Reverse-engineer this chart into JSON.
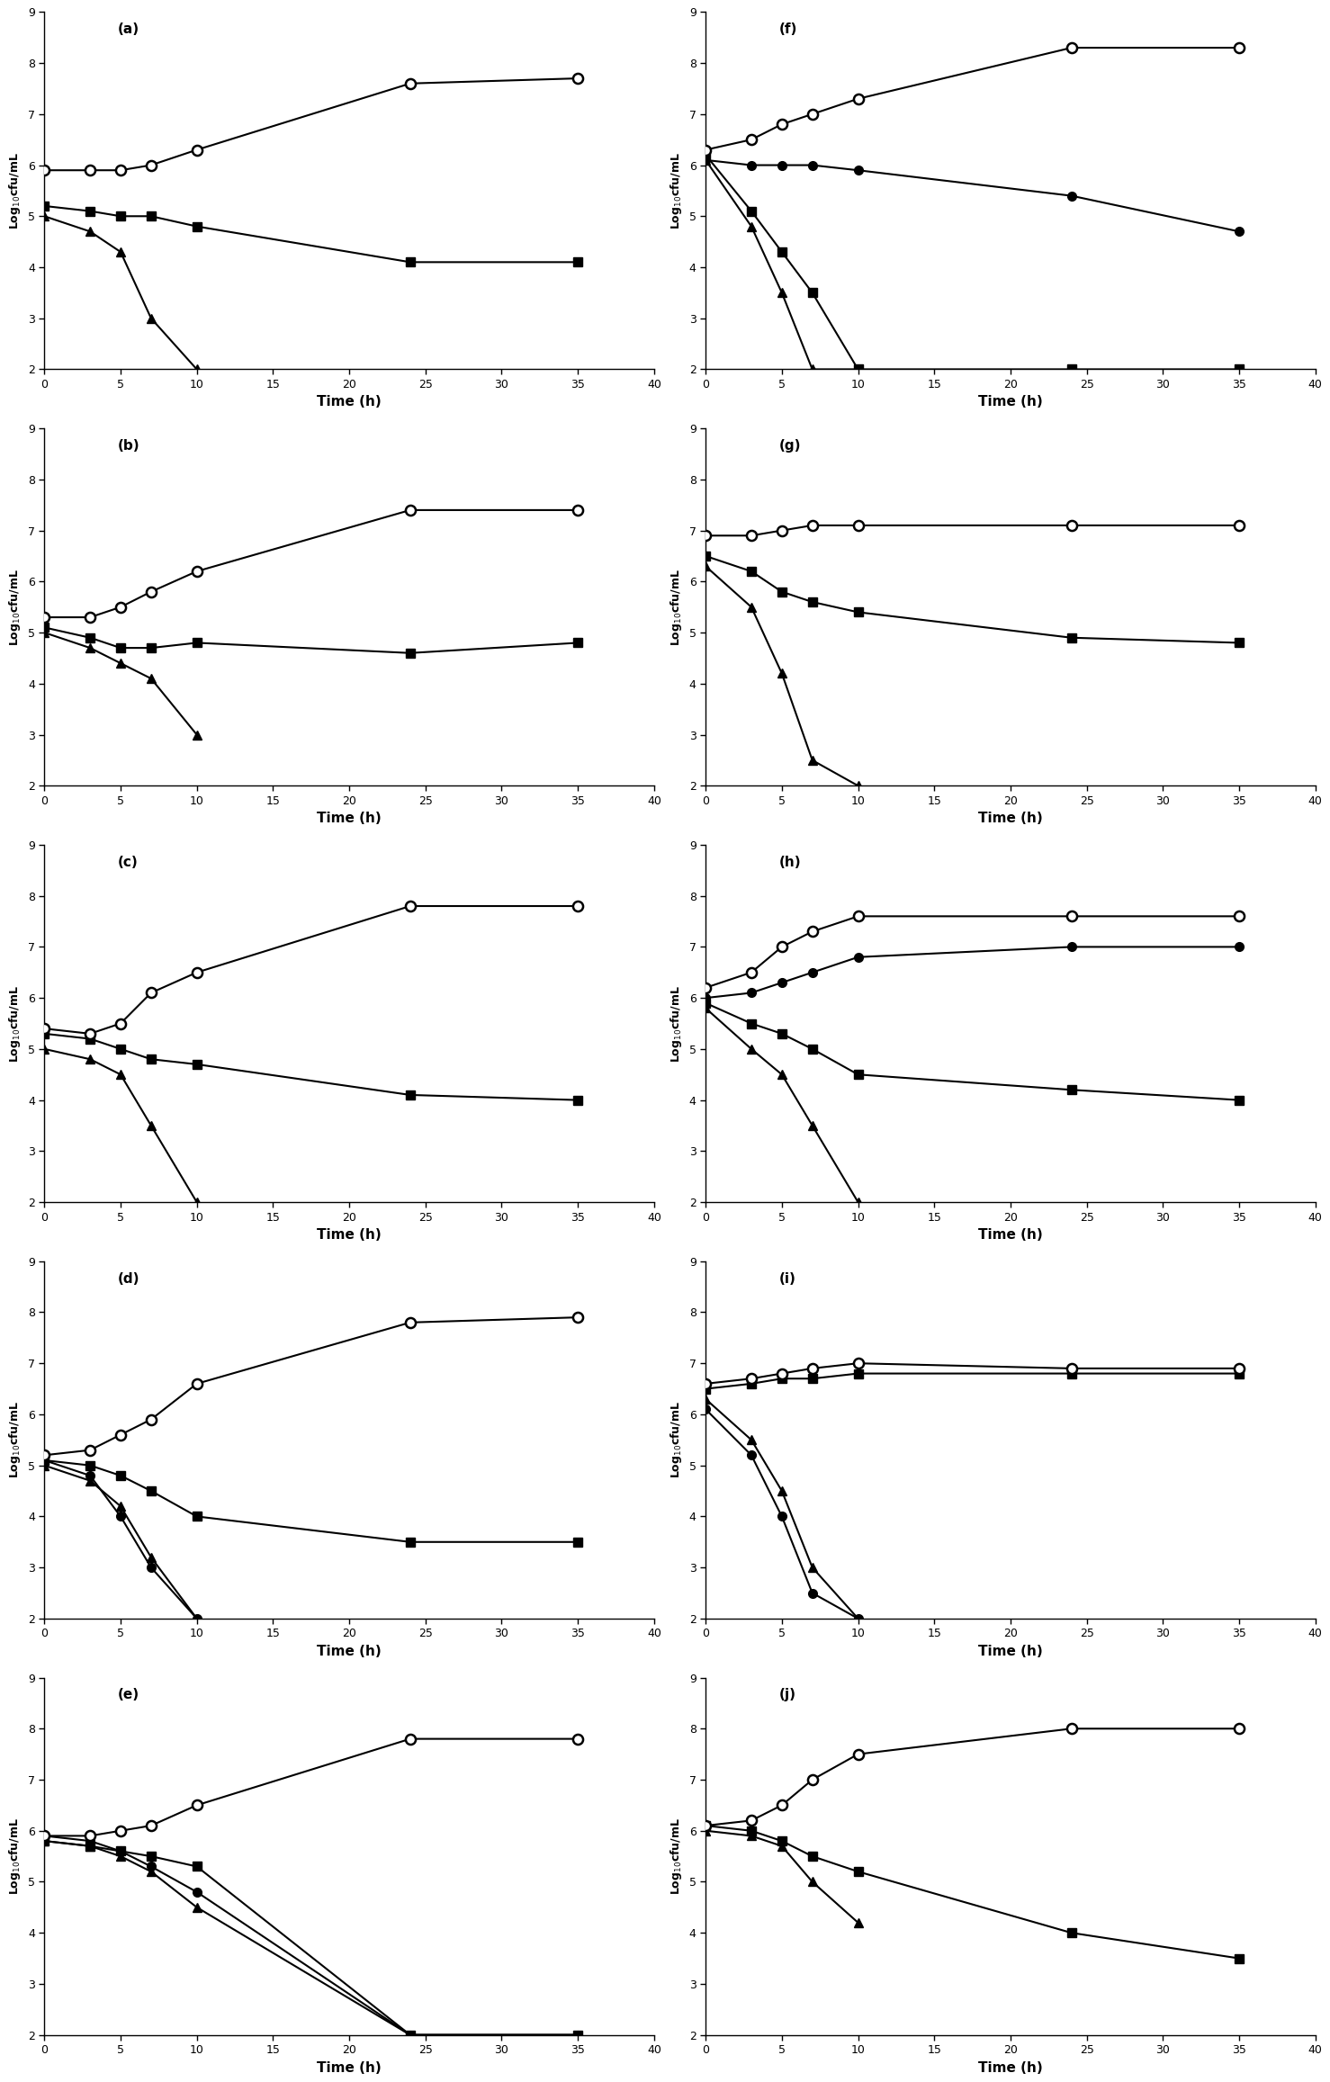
{
  "subplots": {
    "a": {
      "label": "(a)",
      "open_circle": {
        "x": [
          0,
          3,
          5,
          7,
          10,
          24,
          35
        ],
        "y": [
          5.9,
          5.9,
          5.9,
          6.0,
          6.3,
          7.6,
          7.7
        ]
      },
      "filled_square": {
        "x": [
          0,
          3,
          5,
          7,
          10,
          24,
          35
        ],
        "y": [
          5.2,
          5.1,
          5.0,
          5.0,
          4.8,
          4.1,
          4.1
        ]
      },
      "filled_triangle": {
        "x": [
          0,
          3,
          5,
          7,
          10
        ],
        "y": [
          5.0,
          4.7,
          4.3,
          3.0,
          2.0
        ]
      },
      "has_filled_circle": false
    },
    "b": {
      "label": "(b)",
      "open_circle": {
        "x": [
          0,
          3,
          5,
          7,
          10,
          24,
          35
        ],
        "y": [
          5.3,
          5.3,
          5.5,
          5.8,
          6.2,
          7.4,
          7.4
        ]
      },
      "filled_square": {
        "x": [
          0,
          3,
          5,
          7,
          10,
          24,
          35
        ],
        "y": [
          5.1,
          4.9,
          4.7,
          4.7,
          4.8,
          4.6,
          4.8
        ]
      },
      "filled_triangle": {
        "x": [
          0,
          3,
          5,
          7,
          10
        ],
        "y": [
          5.0,
          4.7,
          4.4,
          4.1,
          3.0
        ]
      },
      "has_filled_circle": false
    },
    "c": {
      "label": "(c)",
      "open_circle": {
        "x": [
          0,
          3,
          5,
          7,
          10,
          24,
          35
        ],
        "y": [
          5.4,
          5.3,
          5.5,
          6.1,
          6.5,
          7.8,
          7.8
        ]
      },
      "filled_square": {
        "x": [
          0,
          3,
          5,
          7,
          10,
          24,
          35
        ],
        "y": [
          5.3,
          5.2,
          5.0,
          4.8,
          4.7,
          4.1,
          4.0
        ]
      },
      "filled_triangle": {
        "x": [
          0,
          3,
          5,
          7,
          10
        ],
        "y": [
          5.0,
          4.8,
          4.5,
          3.5,
          2.0
        ]
      },
      "has_filled_circle": false
    },
    "d": {
      "label": "(d)",
      "open_circle": {
        "x": [
          0,
          3,
          5,
          7,
          10,
          24,
          35
        ],
        "y": [
          5.2,
          5.3,
          5.6,
          5.9,
          6.6,
          7.8,
          7.9
        ]
      },
      "filled_square": {
        "x": [
          0,
          3,
          5,
          7,
          10,
          24,
          35
        ],
        "y": [
          5.1,
          5.0,
          4.8,
          4.5,
          4.0,
          3.5,
          3.5
        ]
      },
      "filled_triangle": {
        "x": [
          0,
          3,
          5,
          7,
          10
        ],
        "y": [
          5.0,
          4.7,
          4.2,
          3.2,
          2.0
        ]
      },
      "filled_circle": {
        "x": [
          0,
          3,
          5,
          7,
          10
        ],
        "y": [
          5.1,
          4.8,
          4.0,
          3.0,
          2.0
        ]
      },
      "has_filled_circle": true
    },
    "e": {
      "label": "(e)",
      "open_circle": {
        "x": [
          0,
          3,
          5,
          7,
          10,
          24,
          35
        ],
        "y": [
          5.9,
          5.9,
          6.0,
          6.1,
          6.5,
          7.8,
          7.8
        ]
      },
      "filled_square": {
        "x": [
          0,
          3,
          5,
          7,
          10,
          24,
          35
        ],
        "y": [
          5.8,
          5.7,
          5.6,
          5.5,
          5.3,
          2.0,
          2.0
        ]
      },
      "filled_triangle": {
        "x": [
          0,
          3,
          5,
          7,
          10,
          24,
          35
        ],
        "y": [
          5.8,
          5.7,
          5.5,
          5.2,
          4.5,
          2.0,
          2.0
        ]
      },
      "filled_circle": {
        "x": [
          0,
          3,
          5,
          7,
          10,
          24,
          35
        ],
        "y": [
          5.9,
          5.8,
          5.6,
          5.3,
          4.8,
          2.0,
          2.0
        ]
      },
      "has_filled_circle": true
    },
    "f": {
      "label": "(f)",
      "open_circle": {
        "x": [
          0,
          3,
          5,
          7,
          10,
          24,
          35
        ],
        "y": [
          6.3,
          6.5,
          6.8,
          7.0,
          7.3,
          8.3,
          8.3
        ]
      },
      "filled_square": {
        "x": [
          0,
          3,
          5,
          7,
          10,
          24,
          35
        ],
        "y": [
          6.2,
          5.1,
          4.3,
          3.5,
          2.0,
          2.0,
          2.0
        ]
      },
      "filled_triangle": {
        "x": [
          0,
          3,
          5,
          7,
          10
        ],
        "y": [
          6.1,
          4.8,
          3.5,
          2.0,
          2.0
        ]
      },
      "filled_circle": {
        "x": [
          0,
          3,
          5,
          7,
          10,
          24,
          35
        ],
        "y": [
          6.1,
          6.0,
          6.0,
          6.0,
          5.9,
          5.4,
          4.7
        ]
      },
      "has_filled_circle": true
    },
    "g": {
      "label": "(g)",
      "open_circle": {
        "x": [
          0,
          3,
          5,
          7,
          10,
          24,
          35
        ],
        "y": [
          6.9,
          6.9,
          7.0,
          7.1,
          7.1,
          7.1,
          7.1
        ]
      },
      "filled_square": {
        "x": [
          0,
          3,
          5,
          7,
          10,
          24,
          35
        ],
        "y": [
          6.5,
          6.2,
          5.8,
          5.6,
          5.4,
          4.9,
          4.8
        ]
      },
      "filled_triangle": {
        "x": [
          0,
          3,
          5,
          7,
          10
        ],
        "y": [
          6.3,
          5.5,
          4.2,
          2.5,
          2.0
        ]
      },
      "has_filled_circle": false
    },
    "h": {
      "label": "(h)",
      "open_circle": {
        "x": [
          0,
          3,
          5,
          7,
          10,
          24,
          35
        ],
        "y": [
          6.2,
          6.5,
          7.0,
          7.3,
          7.6,
          7.6,
          7.6
        ]
      },
      "filled_square": {
        "x": [
          0,
          3,
          5,
          7,
          10,
          24,
          35
        ],
        "y": [
          5.9,
          5.5,
          5.3,
          5.0,
          4.5,
          4.2,
          4.0
        ]
      },
      "filled_triangle": {
        "x": [
          0,
          3,
          5,
          7,
          10
        ],
        "y": [
          5.8,
          5.0,
          4.5,
          3.5,
          2.0
        ]
      },
      "filled_circle": {
        "x": [
          0,
          3,
          5,
          7,
          10,
          24,
          35
        ],
        "y": [
          6.0,
          6.1,
          6.3,
          6.5,
          6.8,
          7.0,
          7.0
        ]
      },
      "has_filled_circle": true
    },
    "i": {
      "label": "(i)",
      "open_circle": {
        "x": [
          0,
          3,
          5,
          7,
          10,
          24,
          35
        ],
        "y": [
          6.6,
          6.7,
          6.8,
          6.9,
          7.0,
          6.9,
          6.9
        ]
      },
      "filled_square": {
        "x": [
          0,
          3,
          5,
          7,
          10,
          24,
          35
        ],
        "y": [
          6.5,
          6.6,
          6.7,
          6.7,
          6.8,
          6.8,
          6.8
        ]
      },
      "filled_triangle": {
        "x": [
          0,
          3,
          5,
          7,
          10
        ],
        "y": [
          6.3,
          5.5,
          4.5,
          3.0,
          2.0
        ]
      },
      "filled_circle": {
        "x": [
          0,
          3,
          5,
          7,
          10
        ],
        "y": [
          6.1,
          5.2,
          4.0,
          2.5,
          2.0
        ]
      },
      "has_filled_circle": true
    },
    "j": {
      "label": "(j)",
      "open_circle": {
        "x": [
          0,
          3,
          5,
          7,
          10,
          24,
          35
        ],
        "y": [
          6.1,
          6.2,
          6.5,
          7.0,
          7.5,
          8.0,
          8.0
        ]
      },
      "filled_square": {
        "x": [
          0,
          3,
          5,
          7,
          10,
          24,
          35
        ],
        "y": [
          6.1,
          6.0,
          5.8,
          5.5,
          5.2,
          4.0,
          3.5
        ]
      },
      "filled_triangle": {
        "x": [
          0,
          3,
          5,
          7,
          10
        ],
        "y": [
          6.0,
          5.9,
          5.7,
          5.0,
          4.2
        ]
      },
      "has_filled_circle": false
    }
  },
  "ylim": [
    2,
    9
  ],
  "yticks": [
    2,
    3,
    4,
    5,
    6,
    7,
    8,
    9
  ],
  "xlim": [
    0,
    40
  ],
  "xticks": [
    0,
    5,
    10,
    15,
    20,
    25,
    30,
    35,
    40
  ],
  "xlabel": "Time (h)",
  "ylabel": "Log$_{10}$cfu/mL",
  "background_color": "#ffffff",
  "line_color": "#000000",
  "marker_size_open": 8,
  "marker_size_filled": 7,
  "linewidth": 1.5,
  "subplot_order_left": [
    "a",
    "b",
    "c",
    "d",
    "e"
  ],
  "subplot_order_right": [
    "f",
    "g",
    "h",
    "i",
    "j"
  ]
}
